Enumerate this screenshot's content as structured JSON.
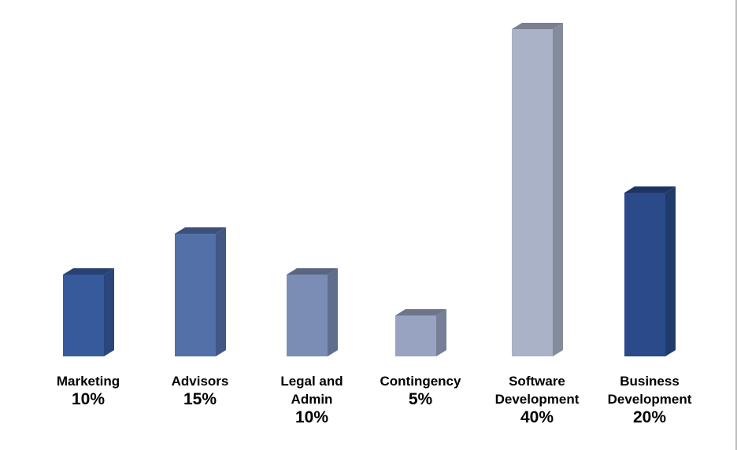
{
  "chart_data": {
    "type": "bar",
    "style": "3d-column",
    "categories": [
      [
        "Marketing"
      ],
      [
        "Advisors"
      ],
      [
        "Legal and",
        "Admin"
      ],
      [
        "Contingency"
      ],
      [
        "Software",
        "Development"
      ],
      [
        "Business",
        "Development"
      ]
    ],
    "value_labels": [
      "10%",
      "15%",
      "10%",
      "5%",
      "40%",
      "20%"
    ],
    "values": [
      10,
      15,
      10,
      5,
      40,
      20
    ],
    "unit": "%",
    "ylim": [
      0,
      40
    ],
    "grid": false,
    "legend": "none",
    "colors": [
      "#365a9c",
      "#5470a9",
      "#7b8db5",
      "#97a3c1",
      "#a9b2c6",
      "#2a4a8a"
    ]
  }
}
